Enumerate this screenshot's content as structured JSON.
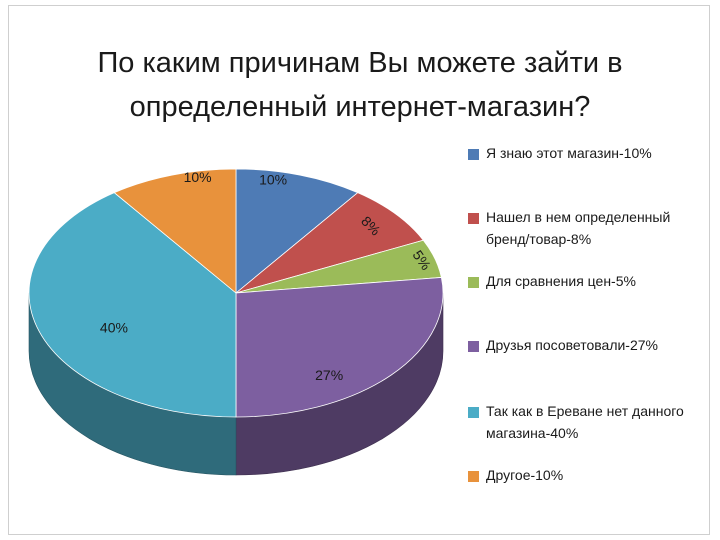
{
  "chart_data": {
    "type": "pie",
    "title_lines": [
      "По каким причинам Вы можете зайти в",
      "определенный интернет-магазин?"
    ],
    "slices": [
      {
        "legend": "Я знаю этот магазин-10%",
        "value": 10,
        "label": "10%",
        "color": "#4e7bb5"
      },
      {
        "legend": "Нашел в нем определенный бренд/товар-8%",
        "value": 8,
        "label": "8%",
        "color": "#c0504d"
      },
      {
        "legend": "Для сравнения цен-5%",
        "value": 5,
        "label": "5%",
        "color": "#9bbb59"
      },
      {
        "legend": "Друзья посоветовали-27%",
        "value": 27,
        "label": "27%",
        "color": "#7d5fa0"
      },
      {
        "legend": "Так как в Ереване нет данного магазина-40%",
        "value": 40,
        "label": "40%",
        "color": "#4bacc6"
      },
      {
        "legend": "Другое-10%",
        "value": 10,
        "label": "10%",
        "color": "#e8923c"
      }
    ],
    "legend_position": "right",
    "style": "3d"
  }
}
